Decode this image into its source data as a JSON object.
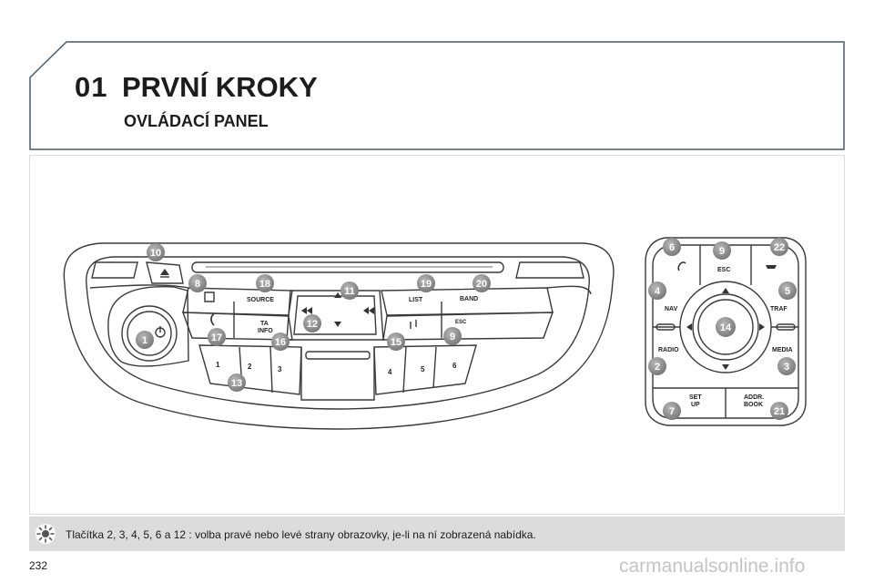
{
  "header": {
    "chapter_number": "01",
    "chapter_title": "PRVNÍ KROKY",
    "section_title": "OVLÁDACÍ PANEL"
  },
  "radio_panel": {
    "labels": {
      "source": "SOURCE",
      "ta": "TA",
      "info": "INFO",
      "list": "LIST",
      "band": "BAND",
      "esc": "ESC",
      "preset_1": "1",
      "preset_2": "2",
      "preset_3": "3",
      "preset_4": "4",
      "preset_5": "5",
      "preset_6": "6"
    },
    "callouts": {
      "c10": "10",
      "c8": "8",
      "c18": "18",
      "c11": "11",
      "c19": "19",
      "c20": "20",
      "c12": "12",
      "c1": "1",
      "c17": "17",
      "c16": "16",
      "c15": "15",
      "c9": "9",
      "c13": "13"
    }
  },
  "remote_panel": {
    "labels": {
      "esc": "ESC",
      "nav": "NAV",
      "traf": "TRAF",
      "radio": "RADIO",
      "media": "MEDIA",
      "set_line1": "SET",
      "set_line2": "UP",
      "addr_line1": "ADDR.",
      "addr_line2": "BOOK"
    },
    "callouts": {
      "c6": "6",
      "c9": "9",
      "c22": "22",
      "c4": "4",
      "c5": "5",
      "c14": "14",
      "c2": "2",
      "c3": "3",
      "c7": "7",
      "c21": "21"
    }
  },
  "note": {
    "icon": "sun-icon",
    "text": "Tlačítka 2, 3, 4, 5, 6 a 12 : volba pravé nebo levé strany obrazovky, je-li na ní zobrazená nabídka."
  },
  "footer": {
    "page_number": "232",
    "watermark": "carmanualsonline.info"
  },
  "colors": {
    "callout_fill": "#8f8f8f",
    "frame_line": "#4a5a6a",
    "note_bg": "#dcdcdc"
  }
}
